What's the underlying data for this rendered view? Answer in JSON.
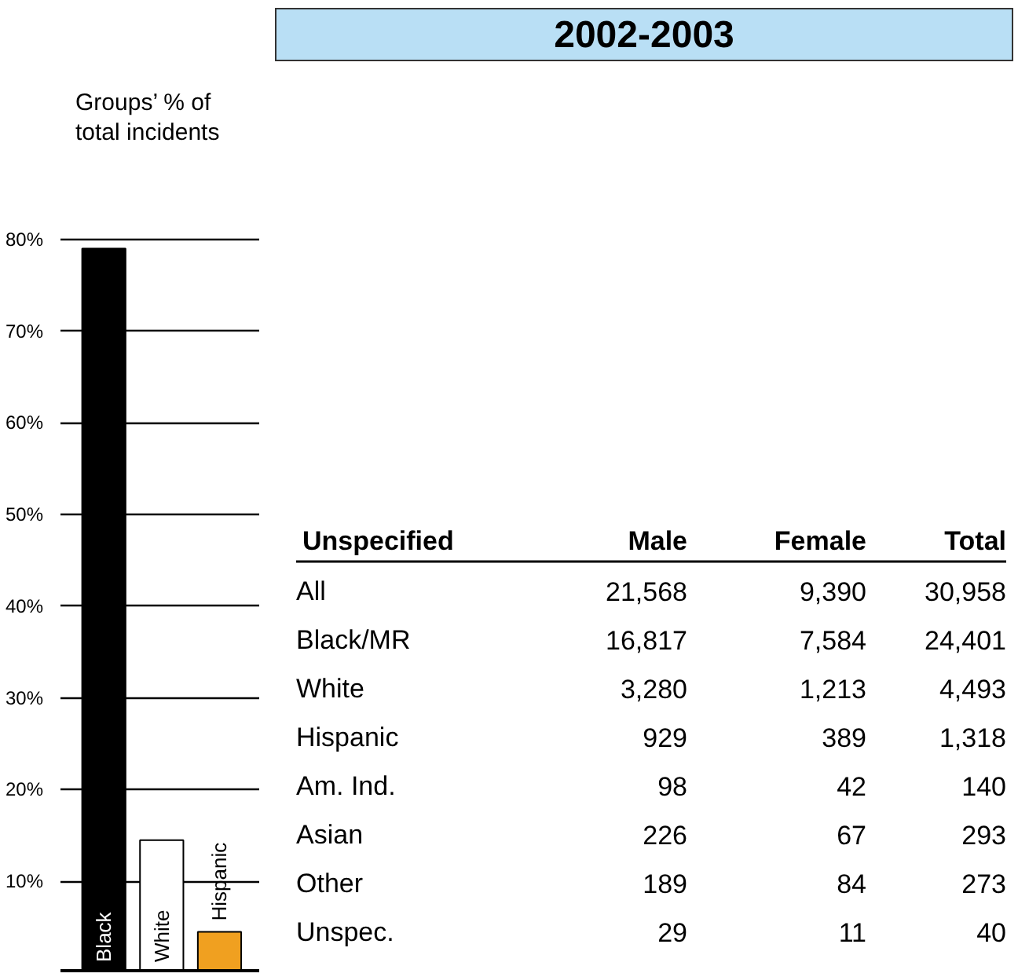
{
  "chart_data": [
    {
      "type": "bar",
      "ylabel": "Groups’ % of total incidents",
      "categories": [
        "Black",
        "White",
        "Hispanic"
      ],
      "values": [
        79,
        14.5,
        4.5
      ],
      "colors": [
        "#000000",
        "#ffffff",
        "#f0a020"
      ],
      "ylim": [
        0,
        80
      ],
      "yticks": [
        {
          "value": 10,
          "label": "10%"
        },
        {
          "value": 20,
          "label": "20%"
        },
        {
          "value": 30,
          "label": "30%"
        },
        {
          "value": 40,
          "label": "40%"
        },
        {
          "value": 50,
          "label": "50%"
        },
        {
          "value": 60,
          "label": "60%"
        },
        {
          "value": 70,
          "label": "70%"
        },
        {
          "value": 80,
          "label": "80%"
        }
      ],
      "grid": "y"
    },
    {
      "type": "other",
      "title": "2002-2003",
      "subtitle": "Unspecified",
      "categories": [
        "All",
        "Black/MR",
        "White",
        "Hispanic",
        "Am. Ind.",
        "Asian",
        "Other",
        "Unspec."
      ],
      "series": [
        {
          "name": "Male",
          "values": [
            21568,
            16817,
            3280,
            929,
            98,
            226,
            189,
            29
          ],
          "value_labels": [
            "21,568",
            "16,817",
            "3,280",
            "929",
            "98",
            "226",
            "189",
            "29"
          ]
        },
        {
          "name": "Female",
          "values": [
            9390,
            7584,
            1213,
            389,
            42,
            67,
            84,
            11
          ],
          "value_labels": [
            "9,390",
            "7,584",
            "1,213",
            "389",
            "42",
            "67",
            "84",
            "11"
          ]
        },
        {
          "name": "Total",
          "values": [
            30958,
            24401,
            4493,
            1318,
            140,
            293,
            273,
            40
          ],
          "value_labels": [
            "30,958",
            "24,401",
            "4,493",
            "1,318",
            "140",
            "293",
            "273",
            "40"
          ]
        }
      ]
    }
  ]
}
